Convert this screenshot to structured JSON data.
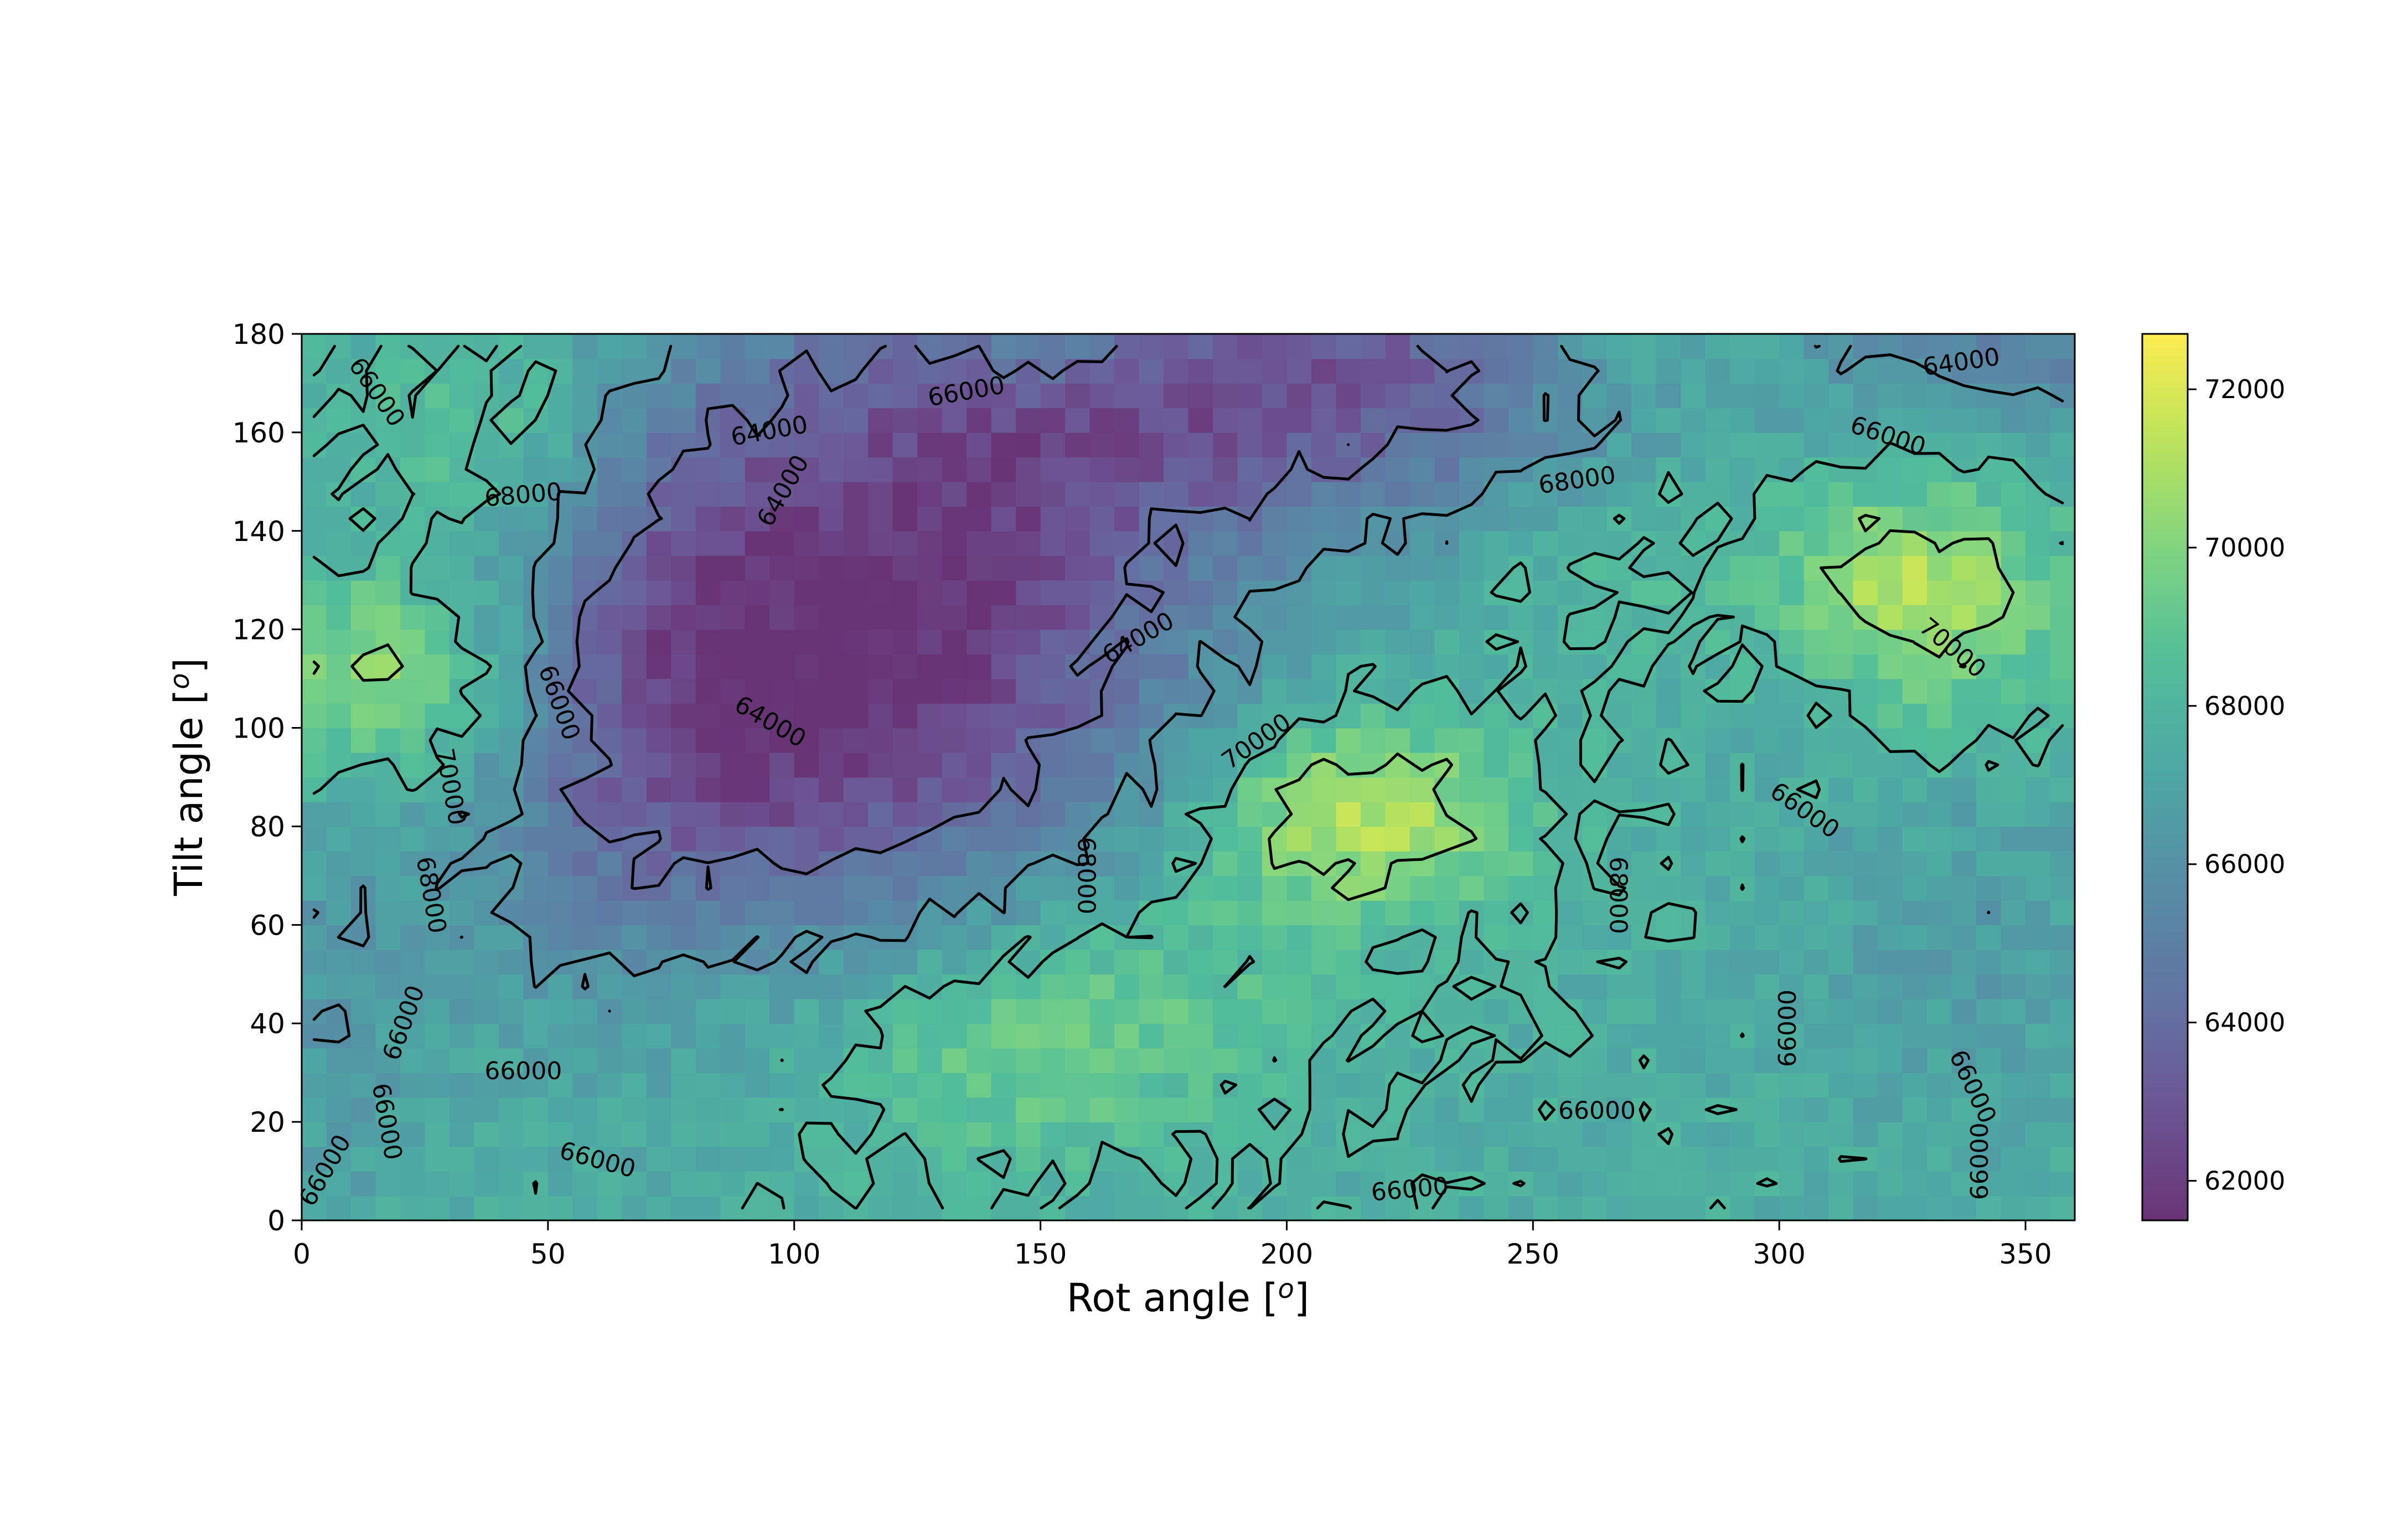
{
  "chart_data": {
    "type": "heatmap",
    "xlabel": "Rot angle [",
    "xlabel_sup": "o",
    "xlabel_end": "]",
    "ylabel": "Tilt angle [",
    "ylabel_sup": "o",
    "ylabel_end": "]",
    "xlim": [
      0,
      360
    ],
    "ylim": [
      0,
      180
    ],
    "x_ticks": [
      "0",
      "50",
      "100",
      "150",
      "200",
      "250",
      "300",
      "350"
    ],
    "y_ticks": [
      "0",
      "20",
      "40",
      "60",
      "80",
      "100",
      "120",
      "140",
      "160",
      "180"
    ],
    "colormap": "viridis",
    "alpha": 0.8,
    "grid_cols": 72,
    "grid_rows": 36,
    "vmin": 61500,
    "vmax": 72700,
    "colorbar_ticks": [
      "62000",
      "64000",
      "66000",
      "68000",
      "70000",
      "72000"
    ],
    "contour_levels": [
      64000,
      66000,
      68000,
      70000
    ],
    "field_components": [
      {
        "kind": "base",
        "value": 67600
      },
      {
        "kind": "gaussian",
        "x": 125,
        "y": 128,
        "sx": 42,
        "sy": 38,
        "amp": -5400
      },
      {
        "kind": "gaussian",
        "x": 95,
        "y": 90,
        "sx": 35,
        "sy": 25,
        "amp": -2200
      },
      {
        "kind": "gaussian",
        "x": 190,
        "y": 170,
        "sx": 55,
        "sy": 20,
        "amp": -2800
      },
      {
        "kind": "gaussian",
        "x": 225,
        "y": 170,
        "sx": 40,
        "sy": 25,
        "amp": -2000
      },
      {
        "kind": "gaussian",
        "x": 75,
        "y": 130,
        "sx": 18,
        "sy": 30,
        "amp": -1800
      },
      {
        "kind": "gaussian",
        "x": 60,
        "y": 75,
        "sx": 25,
        "sy": 35,
        "amp": -1200
      },
      {
        "kind": "gaussian",
        "x": 350,
        "y": 178,
        "sx": 30,
        "sy": 15,
        "amp": -2600
      },
      {
        "kind": "gaussian",
        "x": 5,
        "y": 45,
        "sx": 15,
        "sy": 30,
        "amp": -1200
      },
      {
        "kind": "gaussian",
        "x": 340,
        "y": 60,
        "sx": 25,
        "sy": 30,
        "amp": -1000
      },
      {
        "kind": "gaussian",
        "x": 215,
        "y": 82,
        "sx": 22,
        "sy": 14,
        "amp": 3800
      },
      {
        "kind": "gaussian",
        "x": 15,
        "y": 110,
        "sx": 20,
        "sy": 15,
        "amp": 3000
      },
      {
        "kind": "gaussian",
        "x": 335,
        "y": 125,
        "sx": 18,
        "sy": 20,
        "amp": 2500
      },
      {
        "kind": "gaussian",
        "x": 270,
        "y": 140,
        "sx": 35,
        "sy": 18,
        "amp": 1200
      },
      {
        "kind": "gaussian",
        "x": 145,
        "y": 32,
        "sx": 30,
        "sy": 15,
        "amp": 1600
      },
      {
        "kind": "gaussian",
        "x": 40,
        "y": 160,
        "sx": 20,
        "sy": 15,
        "amp": 1500
      },
      {
        "kind": "gaussian",
        "x": 170,
        "y": 50,
        "sx": 30,
        "sy": 15,
        "amp": 1000
      },
      {
        "kind": "gaussian",
        "x": 270,
        "y": 175,
        "sx": 20,
        "sy": 8,
        "amp": 1200
      },
      {
        "kind": "gaussian",
        "x": 150,
        "y": 178,
        "sx": 15,
        "sy": 8,
        "amp": 1400
      },
      {
        "kind": "gaussian",
        "x": 320,
        "y": 130,
        "sx": 12,
        "sy": 10,
        "amp": 1500
      }
    ],
    "noise_amplitude": 700,
    "contour_labels": [
      {
        "text": "66000",
        "x": 15,
        "y": 168,
        "angle": 55
      },
      {
        "text": "68000",
        "x": 45,
        "y": 147,
        "angle": -5
      },
      {
        "text": "64000",
        "x": 95,
        "y": 160,
        "angle": -10
      },
      {
        "text": "64000",
        "x": 98,
        "y": 148,
        "angle": -60
      },
      {
        "text": "66000",
        "x": 135,
        "y": 168,
        "angle": -10
      },
      {
        "text": "64000",
        "x": 337,
        "y": 174,
        "angle": -8
      },
      {
        "text": "66000",
        "x": 322,
        "y": 159,
        "angle": 18
      },
      {
        "text": "68000",
        "x": 259,
        "y": 150,
        "angle": -8
      },
      {
        "text": "70000",
        "x": 335,
        "y": 116,
        "angle": 40
      },
      {
        "text": "66000",
        "x": 52,
        "y": 105,
        "angle": 70
      },
      {
        "text": "64000",
        "x": 95,
        "y": 101,
        "angle": 30
      },
      {
        "text": "64000",
        "x": 170,
        "y": 118,
        "angle": -30
      },
      {
        "text": "70000",
        "x": 30,
        "y": 88,
        "angle": 80
      },
      {
        "text": "70000",
        "x": 194,
        "y": 97,
        "angle": -35
      },
      {
        "text": "66000",
        "x": 305,
        "y": 83,
        "angle": 35
      },
      {
        "text": "68000",
        "x": 26,
        "y": 66,
        "angle": 80
      },
      {
        "text": "68000",
        "x": 159,
        "y": 70,
        "angle": 90
      },
      {
        "text": "68000",
        "x": 267,
        "y": 66,
        "angle": 90
      },
      {
        "text": "66000",
        "x": 21,
        "y": 40,
        "angle": -70
      },
      {
        "text": "66000",
        "x": 45,
        "y": 30,
        "angle": 0
      },
      {
        "text": "66000",
        "x": 302,
        "y": 39,
        "angle": -90
      },
      {
        "text": "66000",
        "x": 339,
        "y": 27,
        "angle": 65
      },
      {
        "text": "66000",
        "x": 17,
        "y": 20,
        "angle": 80
      },
      {
        "text": "66000",
        "x": 5,
        "y": 10,
        "angle": -60
      },
      {
        "text": "66000",
        "x": 60,
        "y": 12,
        "angle": 15
      },
      {
        "text": "66000",
        "x": 263,
        "y": 22,
        "angle": 0
      },
      {
        "text": "66000",
        "x": 225,
        "y": 6,
        "angle": -5
      },
      {
        "text": "66000",
        "x": 341,
        "y": 12,
        "angle": -90
      }
    ]
  }
}
